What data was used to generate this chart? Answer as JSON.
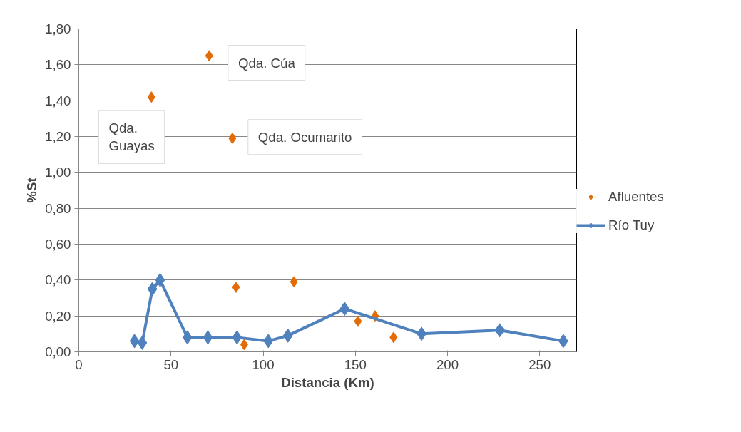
{
  "chart_data": {
    "type": "scatter",
    "xlabel": "Distancia (Km)",
    "ylabel": "%St",
    "xlim": [
      0,
      270
    ],
    "xticks": [
      0,
      50,
      100,
      150,
      200,
      250
    ],
    "ylim": [
      0,
      1.8
    ],
    "yticks": [
      {
        "value": 0,
        "label": "0,00"
      },
      {
        "value": 0.2,
        "label": "0,20"
      },
      {
        "value": 0.4,
        "label": "0,40"
      },
      {
        "value": 0.6,
        "label": "0,60"
      },
      {
        "value": 0.8,
        "label": "0,80"
      },
      {
        "value": 1.0,
        "label": "1,00"
      },
      {
        "value": 1.2,
        "label": "1,20"
      },
      {
        "value": 1.4,
        "label": "1,40"
      },
      {
        "value": 1.6,
        "label": "1,60"
      },
      {
        "value": 1.8,
        "label": "1,80"
      }
    ],
    "grid": "y",
    "legend": "right",
    "marker": "diamond",
    "series": [
      {
        "name": "Afluentes",
        "color": "#e36c09",
        "x": [
          39.4,
          70.7,
          83.3,
          85.3,
          89.7,
          116.7,
          151.4,
          160.7,
          170.7
        ],
        "values": [
          1.42,
          1.65,
          1.19,
          0.36,
          0.04,
          0.39,
          0.17,
          0.2,
          0.08
        ]
      },
      {
        "name": "Río Tuy",
        "type": "line",
        "color": "#4f81bd",
        "x": [
          30.2,
          34.4,
          39.9,
          44.1,
          58.9,
          70.0,
          85.8,
          102.8,
          113.4,
          144.2,
          185.9,
          228.3,
          262.8
        ],
        "values": [
          0.06,
          0.05,
          0.35,
          0.4,
          0.08,
          0.08,
          0.08,
          0.06,
          0.09,
          0.24,
          0.1,
          0.12,
          0.06
        ]
      }
    ],
    "annotations": [
      "Qda. Guayas",
      "Qda. Cúa",
      "Qda. Ocumarito"
    ]
  }
}
